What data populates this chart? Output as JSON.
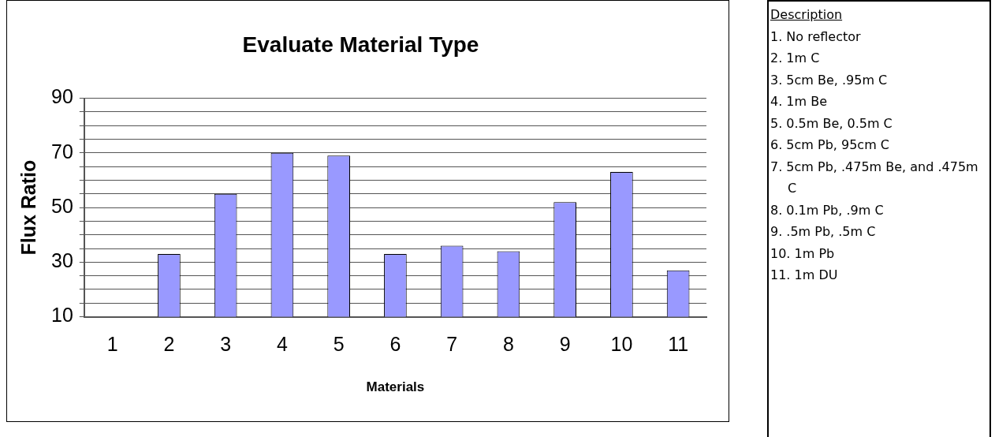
{
  "chart_data": [
    {
      "type": "bar",
      "title": "Evaluate Material Type",
      "xlabel": "Materials",
      "ylabel": "Flux Ratio",
      "categories": [
        "1",
        "2",
        "3",
        "4",
        "5",
        "6",
        "7",
        "8",
        "9",
        "10",
        "11"
      ],
      "values": [
        null,
        33,
        55,
        70,
        69,
        33,
        36,
        34,
        52,
        63,
        27
      ],
      "color": "#9999ff",
      "ylim": [
        10,
        90
      ],
      "yticks": [
        10,
        {
          "value": 15,
          "label": null
        },
        {
          "value": 20,
          "label": null
        },
        {
          "value": 25,
          "label": null
        },
        30,
        {
          "value": 35,
          "label": null
        },
        {
          "value": 40,
          "label": null
        },
        {
          "value": 45,
          "label": null
        },
        50,
        {
          "value": 55,
          "label": null
        },
        {
          "value": 60,
          "label": null
        },
        {
          "value": 65,
          "label": null
        },
        70,
        {
          "value": 75,
          "label": null
        },
        {
          "value": 80,
          "label": null
        },
        {
          "value": 85,
          "label": null
        },
        90
      ],
      "grid": "y",
      "legend": false
    },
    {
      "type": "other",
      "title": "Description",
      "annotations": [
        "1. No reflector",
        "2. 1m C",
        "3. 5cm Be, .95m C",
        "4. 1m Be",
        "5. 0.5m Be, 0.5m C",
        "6. 5cm Pb, 95cm C",
        "7. 5cm Pb, .475m Be, and .475m C",
        "8. 0.1m Pb, .9m C",
        "9. .5m Pb, .5m C",
        "10. 1m Pb",
        "11. 1m DU"
      ]
    }
  ]
}
